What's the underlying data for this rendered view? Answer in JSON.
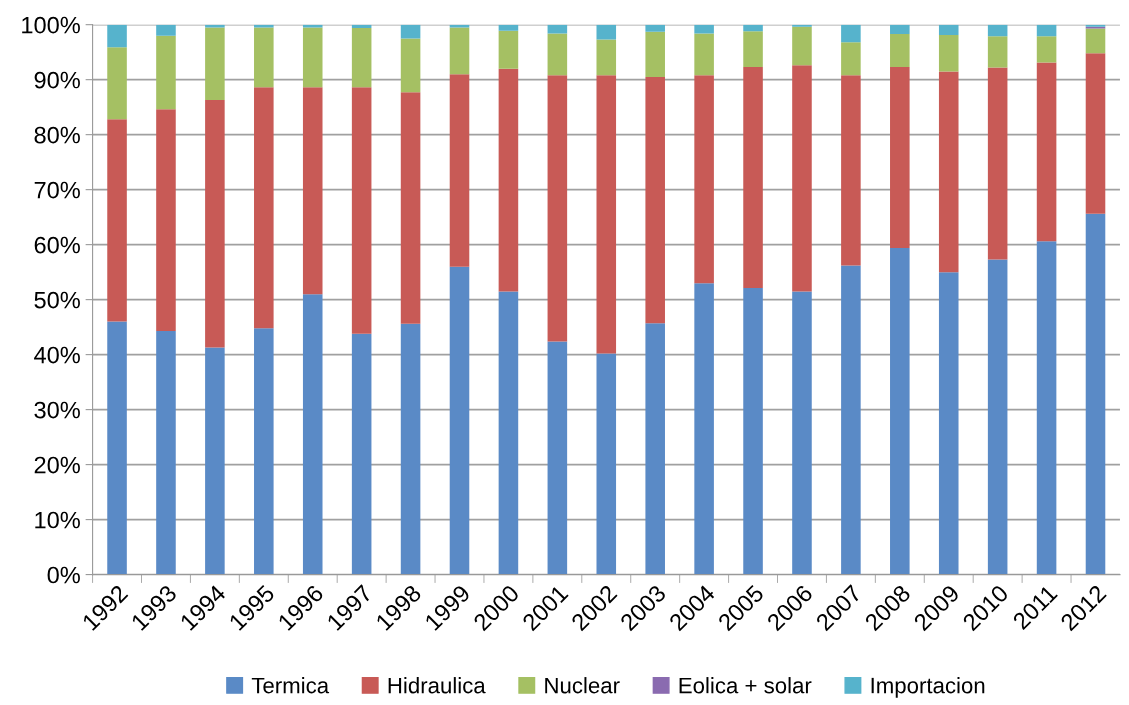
{
  "chart_data": {
    "type": "bar",
    "stacked": true,
    "categories": [
      "1992",
      "1993",
      "1994",
      "1995",
      "1996",
      "1997",
      "1998",
      "1999",
      "2000",
      "2001",
      "2002",
      "2003",
      "2004",
      "2005",
      "2006",
      "2007",
      "2008",
      "2009",
      "2010",
      "2011",
      "2012"
    ],
    "series": [
      {
        "name": "Termica",
        "color": "#5a8ac6",
        "values": [
          46,
          44.3,
          41.3,
          44.8,
          51,
          43.8,
          45.6,
          56,
          51.5,
          42.4,
          40.2,
          45.7,
          53,
          52.1,
          51.5,
          56.2,
          59.4,
          55,
          57.3,
          60.6,
          65.6
        ]
      },
      {
        "name": "Hidraulica",
        "color": "#c85a56",
        "values": [
          36.8,
          40.3,
          45.0,
          43.8,
          37.6,
          44.8,
          42.1,
          35.0,
          40.5,
          48.4,
          50.6,
          44.8,
          37.8,
          40.2,
          41.1,
          34.6,
          32.9,
          36.5,
          34.9,
          32.5,
          29.2
        ]
      },
      {
        "name": "Nuclear",
        "color": "#a5c063",
        "values": [
          13.1,
          13.4,
          13.2,
          10.9,
          10.9,
          10.8,
          9.8,
          8.5,
          6.9,
          7.6,
          6.5,
          8.2,
          7.6,
          6.5,
          7.0,
          6.0,
          6.0,
          6.6,
          5.7,
          4.8,
          4.5
        ]
      },
      {
        "name": "Eolica + solar",
        "color": "#8a6bb0",
        "values": [
          0,
          0,
          0,
          0,
          0,
          0,
          0,
          0,
          0,
          0,
          0,
          0,
          0,
          0,
          0,
          0,
          0,
          0,
          0,
          0,
          0.3
        ]
      },
      {
        "name": "Importacion",
        "color": "#56b3cc",
        "values": [
          4.1,
          2.0,
          0.5,
          0.5,
          0.5,
          0.6,
          2.5,
          0.5,
          1.1,
          1.6,
          2.7,
          1.3,
          1.6,
          1.2,
          0.4,
          3.2,
          1.7,
          1.9,
          2.1,
          2.1,
          0.4
        ]
      }
    ],
    "ylim": [
      0,
      100
    ],
    "yticks": [
      {
        "value": 0,
        "label": "0%"
      },
      {
        "value": 10,
        "label": "10%"
      },
      {
        "value": 20,
        "label": "20%"
      },
      {
        "value": 30,
        "label": "30%"
      },
      {
        "value": 40,
        "label": "40%"
      },
      {
        "value": 50,
        "label": "50%"
      },
      {
        "value": 60,
        "label": "60%"
      },
      {
        "value": 70,
        "label": "70%"
      },
      {
        "value": 80,
        "label": "80%"
      },
      {
        "value": 90,
        "label": "90%"
      },
      {
        "value": 100,
        "label": "100%"
      }
    ],
    "grid": "y",
    "legend": "bottom"
  }
}
